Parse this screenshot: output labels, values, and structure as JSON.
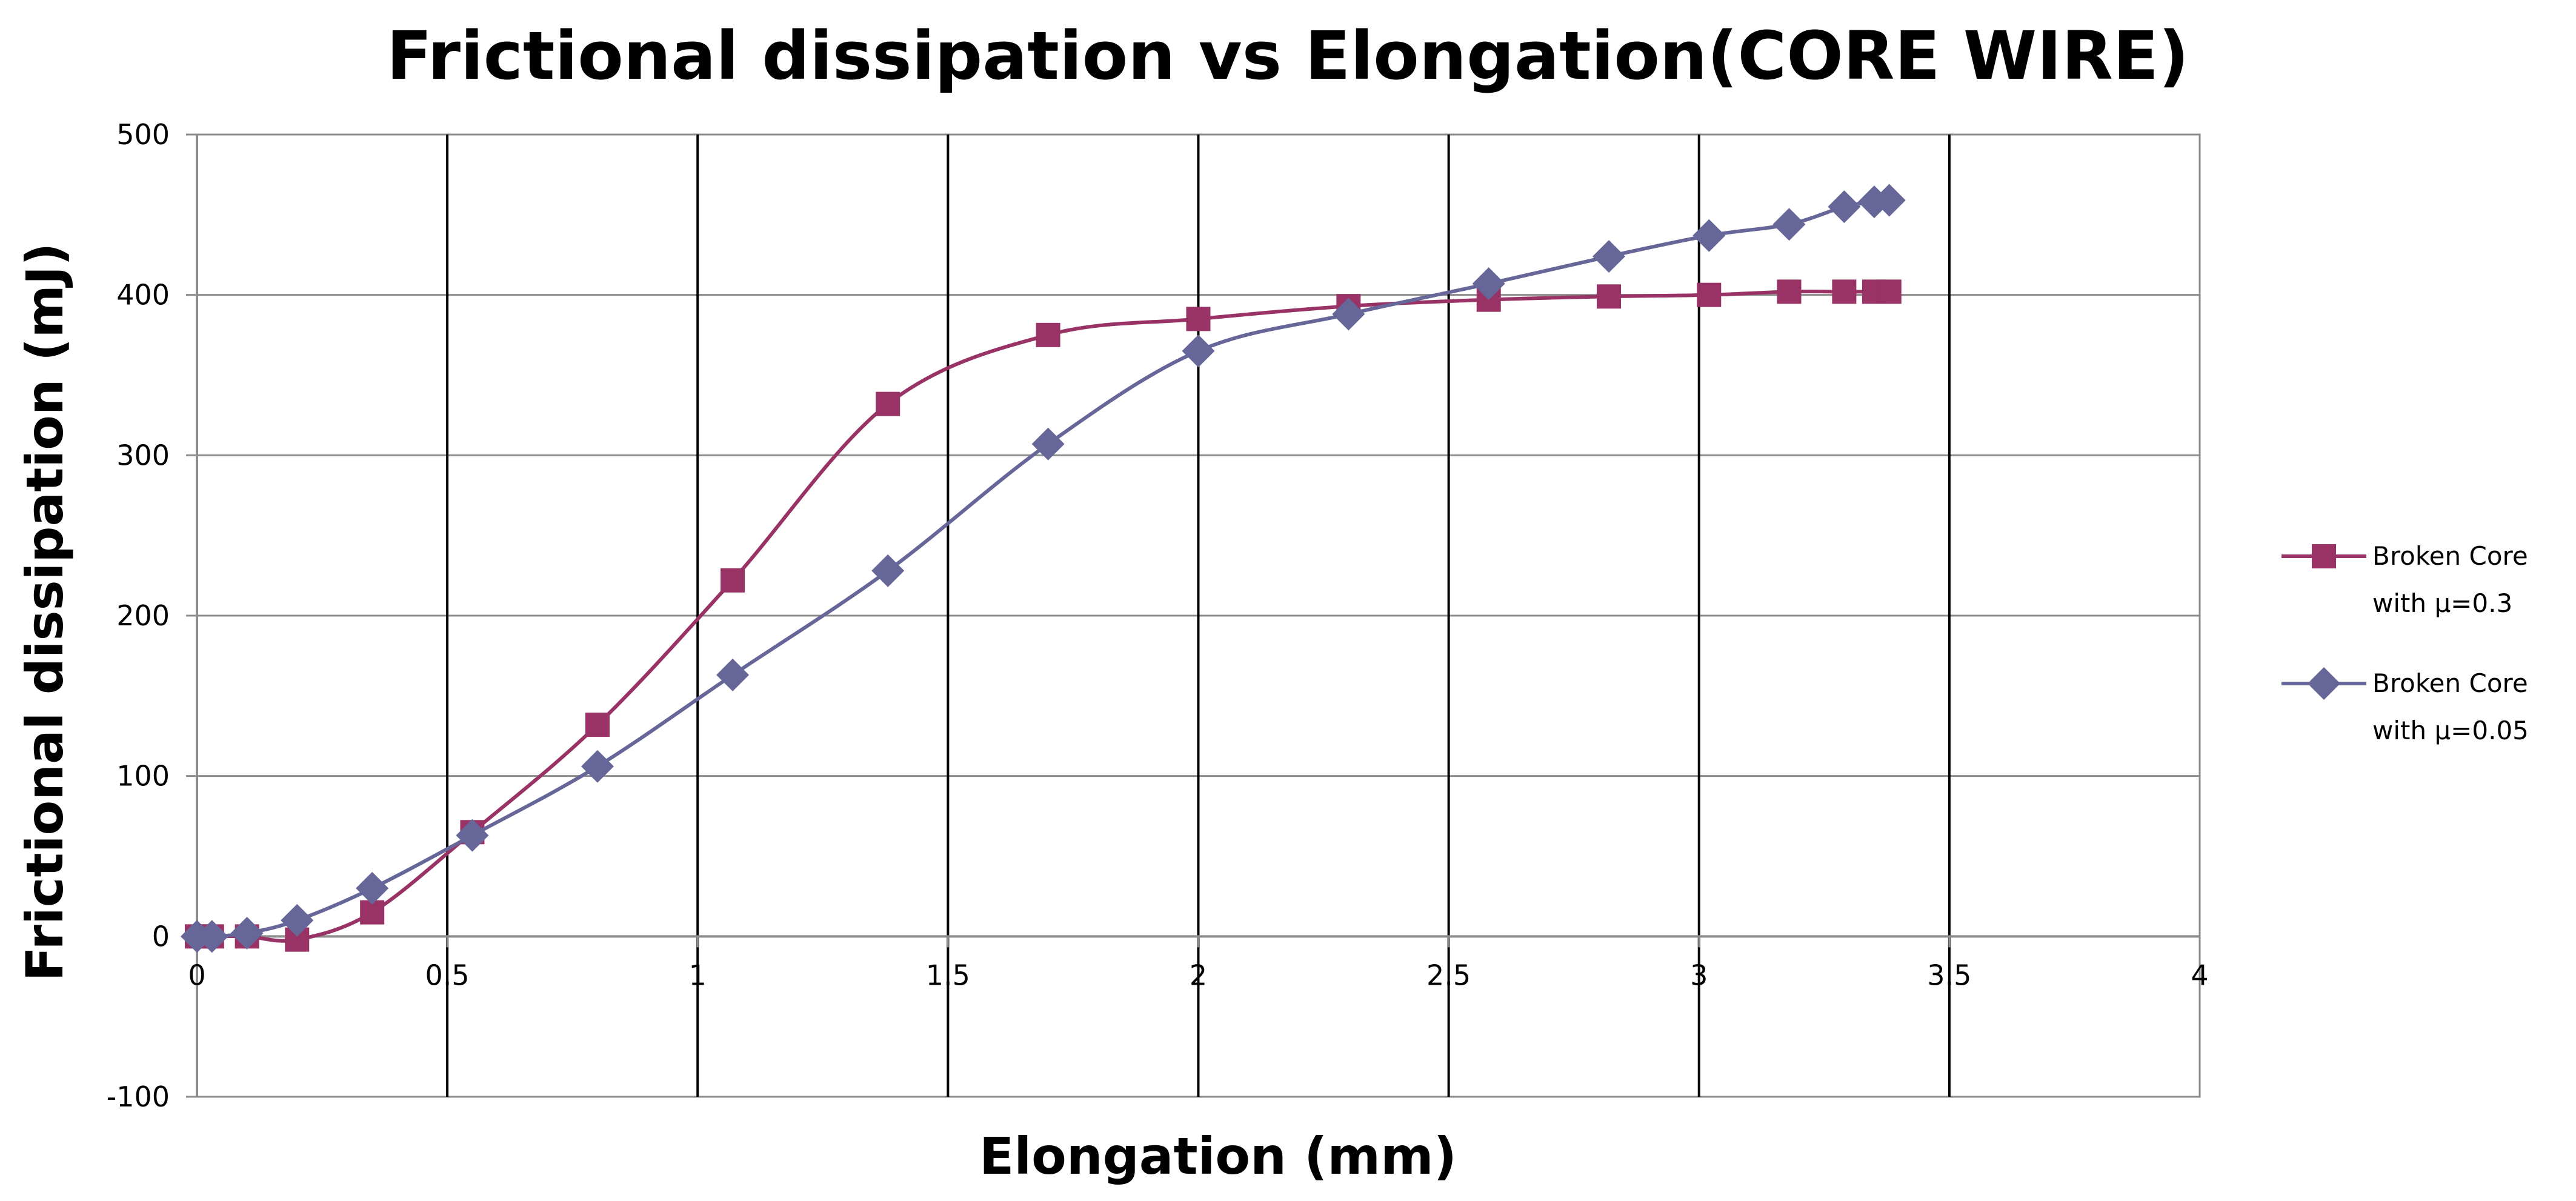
{
  "chart_data": {
    "type": "line",
    "title": "Frictional dissipation vs Elongation(CORE WIRE)",
    "xlabel": "Elongation (mm)",
    "ylabel": "Frictional dissipation (mJ)",
    "xlim": [
      0,
      4
    ],
    "ylim": [
      -100,
      500
    ],
    "xticks": [
      0,
      0.5,
      1,
      1.5,
      2,
      2.5,
      3,
      3.5,
      4
    ],
    "xtick_labels": [
      "0",
      "0.5",
      "1",
      "1.5",
      "2",
      "2.5",
      "3",
      "3.5",
      "4"
    ],
    "yticks": [
      -100,
      0,
      100,
      200,
      300,
      400,
      500
    ],
    "ytick_labels": [
      "-100",
      "0",
      "100",
      "200",
      "300",
      "400",
      "500"
    ],
    "grid": true,
    "legend_position": "right",
    "series": [
      {
        "name": "Broken Core with μ=0.3",
        "legend_lines": [
          "Broken Core",
          "with μ=0.3"
        ],
        "color": "#993366",
        "marker": "square",
        "x": [
          0,
          0.03,
          0.1,
          0.2,
          0.35,
          0.55,
          0.8,
          1.07,
          1.38,
          1.7,
          2.0,
          2.3,
          2.58,
          2.82,
          3.02,
          3.18,
          3.29,
          3.35,
          3.38
        ],
        "y": [
          0,
          0,
          0,
          -2,
          15,
          65,
          132,
          222,
          332,
          375,
          385,
          393,
          397,
          399,
          400,
          402,
          402,
          402,
          402
        ]
      },
      {
        "name": "Broken Core with μ=0.05",
        "legend_lines": [
          "Broken Core",
          "with μ=0.05"
        ],
        "color": "#666699",
        "marker": "diamond",
        "x": [
          0,
          0.03,
          0.1,
          0.2,
          0.35,
          0.55,
          0.8,
          1.07,
          1.38,
          1.7,
          2.0,
          2.3,
          2.58,
          2.82,
          3.02,
          3.18,
          3.29,
          3.35,
          3.38
        ],
        "y": [
          0,
          0,
          2,
          10,
          30,
          63,
          106,
          163,
          228,
          307,
          365,
          388,
          407,
          424,
          437,
          444,
          455,
          458,
          459
        ]
      }
    ]
  }
}
